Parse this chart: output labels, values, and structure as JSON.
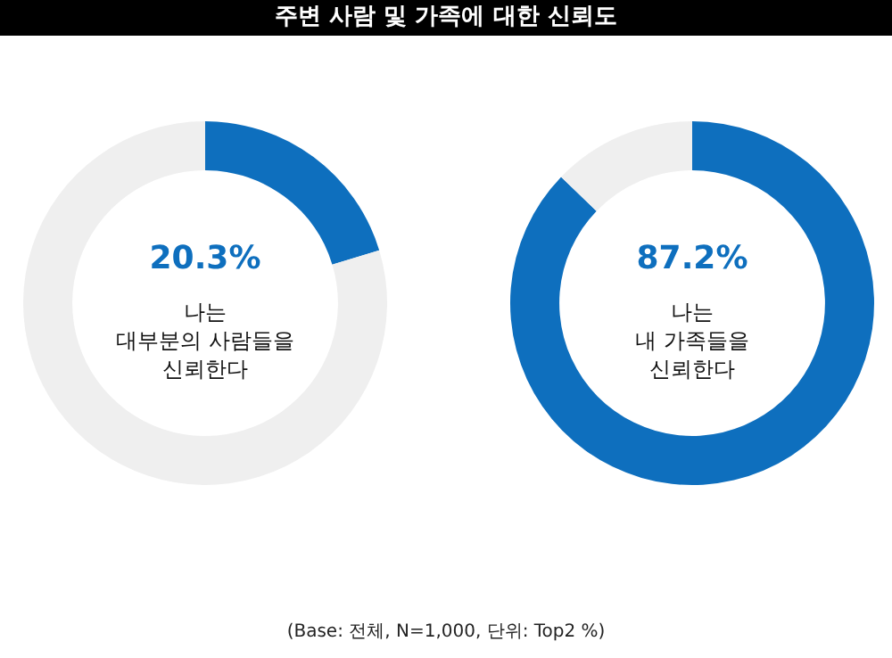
{
  "chart_data": [
    {
      "type": "donut",
      "title": "주변 사람 및 가족에 대한 신뢰도",
      "subtitle": "나는\n대부분의 사람들을\n신뢰한다",
      "categories": [
        null,
        null
      ],
      "values": [
        20.3,
        79.7
      ],
      "colors": [
        "#0e6fbe",
        "#efefef"
      ],
      "value_labels": [
        "20.3%",
        null
      ],
      "legend": false
    },
    {
      "type": "donut",
      "subtitle": "나는\n내 가족들을\n신뢰한다",
      "categories": [
        null,
        null
      ],
      "values": [
        87.2,
        12.8
      ],
      "colors": [
        "#0e6fbe",
        "#efefef"
      ],
      "value_labels": [
        "87.2%",
        null
      ],
      "legend": false,
      "annotations": [
        "(Base: 전체, N=1,000, 단위: Top2 %)"
      ]
    }
  ]
}
